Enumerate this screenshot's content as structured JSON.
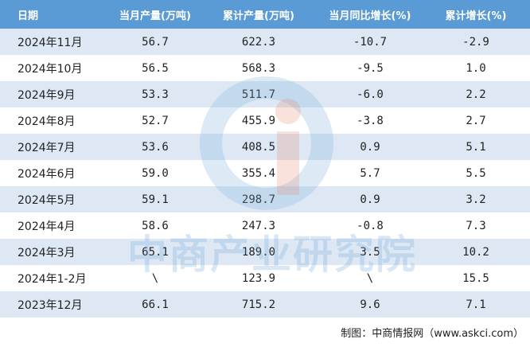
{
  "table": {
    "header": [
      "日期",
      "当月产量(万吨)",
      "累计产量(万吨)",
      "当月同比增长(%)",
      "累计增长(%)"
    ],
    "rows": [
      [
        "2024年11月",
        "56.7",
        "622.3",
        "-10.7",
        "-2.9"
      ],
      [
        "2024年10月",
        "56.5",
        "568.3",
        "-9.5",
        "1.0"
      ],
      [
        "2024年9月",
        "53.3",
        "511.7",
        "-6.0",
        "2.2"
      ],
      [
        "2024年8月",
        "52.7",
        "455.9",
        "-3.8",
        "2.7"
      ],
      [
        "2024年7月",
        "53.6",
        "408.5",
        "0.9",
        "5.1"
      ],
      [
        "2024年6月",
        "59.0",
        "355.4",
        "5.7",
        "5.5"
      ],
      [
        "2024年5月",
        "59.1",
        "298.7",
        "0.9",
        "3.2"
      ],
      [
        "2024年4月",
        "58.6",
        "247.3",
        "-0.8",
        "7.3"
      ],
      [
        "2024年3月",
        "65.1",
        "189.0",
        "3.5",
        "10.2"
      ],
      [
        "2024年1-2月",
        "\\",
        "123.9",
        "\\",
        "15.5"
      ],
      [
        "2023年12月",
        "66.1",
        "715.2",
        "9.6",
        "7.1"
      ]
    ]
  },
  "watermark": "中商产业研究院",
  "footer": "制图：中商情报网（www.askci.com）"
}
